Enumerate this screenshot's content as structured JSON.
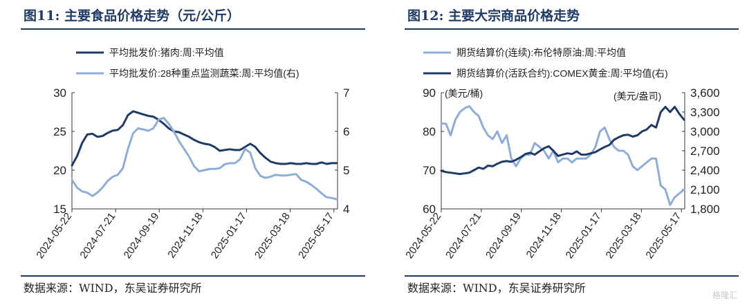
{
  "source": "数据来源：WIND，东吴证券研究所",
  "watermark": "格隆汇",
  "charts": [
    {
      "title": "图11:  主要食品价格走势（元/公斤）",
      "chart_data": {
        "type": "line",
        "x_ticks": [
          "2024-05-22",
          "2024-07-21",
          "2024-09-19",
          "2024-11-18",
          "2025-01-17",
          "2025-03-18",
          "2025-05-17"
        ],
        "x_range": [
          "2024-05-22",
          "2025-05-22"
        ],
        "y_left": {
          "min": 15,
          "max": 30,
          "ticks": [
            15,
            20,
            25,
            30
          ]
        },
        "y_right": {
          "min": 4,
          "max": 7,
          "ticks": [
            4,
            5,
            6,
            7
          ]
        },
        "series": [
          {
            "name": "平均批发价:猪肉:周:平均值",
            "axis": "left",
            "color": "#1f3a64",
            "x": [
              "2024-05-22",
              "2024-05-29",
              "2024-06-05",
              "2024-06-12",
              "2024-06-19",
              "2024-06-26",
              "2024-07-03",
              "2024-07-10",
              "2024-07-17",
              "2024-07-24",
              "2024-07-31",
              "2024-08-07",
              "2024-08-14",
              "2024-08-21",
              "2024-08-28",
              "2024-09-04",
              "2024-09-11",
              "2024-09-18",
              "2024-09-25",
              "2024-10-02",
              "2024-10-09",
              "2024-10-16",
              "2024-10-23",
              "2024-10-30",
              "2024-11-06",
              "2024-11-13",
              "2024-11-20",
              "2024-11-27",
              "2024-12-04",
              "2024-12-11",
              "2024-12-18",
              "2024-12-25",
              "2025-01-01",
              "2025-01-08",
              "2025-01-15",
              "2025-01-22",
              "2025-01-29",
              "2025-02-05",
              "2025-02-12",
              "2025-02-19",
              "2025-02-26",
              "2025-03-05",
              "2025-03-12",
              "2025-03-19",
              "2025-03-26",
              "2025-04-02",
              "2025-04-09",
              "2025-04-16",
              "2025-04-23",
              "2025-04-30",
              "2025-05-07",
              "2025-05-14",
              "2025-05-21"
            ],
            "values": [
              20.6,
              21.8,
              23.5,
              24.6,
              24.7,
              24.3,
              24.4,
              24.8,
              25.1,
              25.2,
              25.8,
              27.1,
              27.6,
              27.4,
              27.2,
              27.0,
              26.9,
              26.5,
              26.0,
              25.4,
              25.0,
              24.9,
              24.6,
              24.3,
              23.9,
              23.6,
              23.4,
              23.3,
              23.0,
              22.5,
              22.6,
              22.7,
              22.6,
              22.6,
              23.0,
              23.4,
              23.0,
              22.2,
              21.6,
              21.1,
              20.9,
              20.8,
              20.8,
              20.9,
              20.8,
              20.8,
              20.9,
              20.8,
              20.8,
              21.0,
              20.8,
              20.9,
              20.9
            ]
          },
          {
            "name": "平均批发价:28种重点监测蔬菜:周:平均值(右)",
            "axis": "right",
            "color": "#8eacd8",
            "x": [
              "2024-05-22",
              "2024-05-29",
              "2024-06-05",
              "2024-06-12",
              "2024-06-19",
              "2024-06-26",
              "2024-07-03",
              "2024-07-10",
              "2024-07-17",
              "2024-07-24",
              "2024-07-31",
              "2024-08-07",
              "2024-08-14",
              "2024-08-21",
              "2024-08-28",
              "2024-09-04",
              "2024-09-11",
              "2024-09-18",
              "2024-09-25",
              "2024-10-02",
              "2024-10-09",
              "2024-10-16",
              "2024-10-23",
              "2024-10-30",
              "2024-11-06",
              "2024-11-13",
              "2024-11-20",
              "2024-11-27",
              "2024-12-04",
              "2024-12-11",
              "2024-12-18",
              "2024-12-25",
              "2025-01-01",
              "2025-01-08",
              "2025-01-15",
              "2025-01-22",
              "2025-01-29",
              "2025-02-05",
              "2025-02-12",
              "2025-02-19",
              "2025-02-26",
              "2025-03-05",
              "2025-03-12",
              "2025-03-19",
              "2025-03-26",
              "2025-04-02",
              "2025-04-09",
              "2025-04-16",
              "2025-04-23",
              "2025-04-30",
              "2025-05-07",
              "2025-05-14",
              "2025-05-21"
            ],
            "values": [
              4.75,
              4.55,
              4.45,
              4.42,
              4.33,
              4.42,
              4.55,
              4.72,
              4.83,
              4.88,
              5.05,
              5.55,
              5.95,
              6.08,
              6.05,
              6.02,
              6.08,
              6.3,
              6.35,
              6.2,
              6.0,
              5.75,
              5.55,
              5.35,
              5.1,
              4.97,
              5.0,
              5.03,
              5.03,
              5.05,
              5.15,
              5.18,
              5.18,
              5.28,
              5.55,
              5.45,
              5.05,
              4.85,
              4.8,
              4.83,
              4.88,
              4.86,
              4.86,
              4.88,
              4.9,
              4.75,
              4.7,
              4.62,
              4.52,
              4.4,
              4.3,
              4.28,
              4.25
            ]
          }
        ]
      }
    },
    {
      "title": "图12:  主要大宗商品价格走势",
      "chart_data": {
        "type": "line",
        "x_ticks": [
          "2024-05-22",
          "2024-07-21",
          "2024-09-19",
          "2024-11-18",
          "2025-01-17",
          "2025-03-18",
          "2025-05-17"
        ],
        "x_range": [
          "2024-05-22",
          "2025-05-22"
        ],
        "y_left": {
          "min": 60,
          "max": 90,
          "ticks": [
            60,
            70,
            80,
            90
          ],
          "unit_label": "(美元/桶)"
        },
        "y_right": {
          "min": 1800,
          "max": 3600,
          "ticks": [
            1800,
            2100,
            2400,
            2700,
            3000,
            3300,
            3600
          ],
          "unit_label": "(美元/盎司)"
        },
        "series": [
          {
            "name": "期货结算价(连续):布伦特原油:周:平均值",
            "axis": "left",
            "color": "#8eacd8",
            "x": [
              "2024-05-22",
              "2024-05-29",
              "2024-06-05",
              "2024-06-12",
              "2024-06-19",
              "2024-06-26",
              "2024-07-03",
              "2024-07-10",
              "2024-07-17",
              "2024-07-24",
              "2024-07-31",
              "2024-08-07",
              "2024-08-14",
              "2024-08-21",
              "2024-08-28",
              "2024-09-04",
              "2024-09-11",
              "2024-09-18",
              "2024-09-25",
              "2024-10-02",
              "2024-10-09",
              "2024-10-16",
              "2024-10-23",
              "2024-10-30",
              "2024-11-06",
              "2024-11-13",
              "2024-11-20",
              "2024-11-27",
              "2024-12-04",
              "2024-12-11",
              "2024-12-18",
              "2024-12-25",
              "2025-01-01",
              "2025-01-08",
              "2025-01-15",
              "2025-01-22",
              "2025-01-29",
              "2025-02-05",
              "2025-02-12",
              "2025-02-19",
              "2025-02-26",
              "2025-03-05",
              "2025-03-12",
              "2025-03-19",
              "2025-03-26",
              "2025-04-02",
              "2025-04-09",
              "2025-04-16",
              "2025-04-23",
              "2025-04-30",
              "2025-05-07",
              "2025-05-14",
              "2025-05-21"
            ],
            "values": [
              82,
              82,
              79,
              83,
              85,
              86,
              86.5,
              85,
              84,
              81,
              79,
              78,
              80,
              77,
              79,
              73,
              71,
              73,
              74,
              74,
              77,
              76,
              75,
              73,
              75,
              72,
              73,
              73,
              72,
              73,
              73,
              73,
              74,
              76,
              80,
              81,
              78,
              76,
              75,
              75,
              74,
              71,
              70,
              71,
              72,
              73,
              73,
              66,
              65,
              61,
              63,
              64,
              65
            ]
          },
          {
            "name": "期货结算价(活跃合约):COMEX黄金:周:平均值(右)",
            "axis": "right",
            "color": "#1f3a64",
            "x": [
              "2024-05-22",
              "2024-05-29",
              "2024-06-05",
              "2024-06-12",
              "2024-06-19",
              "2024-06-26",
              "2024-07-03",
              "2024-07-10",
              "2024-07-17",
              "2024-07-24",
              "2024-07-31",
              "2024-08-07",
              "2024-08-14",
              "2024-08-21",
              "2024-08-28",
              "2024-09-04",
              "2024-09-11",
              "2024-09-18",
              "2024-09-25",
              "2024-10-02",
              "2024-10-09",
              "2024-10-16",
              "2024-10-23",
              "2024-10-30",
              "2024-11-06",
              "2024-11-13",
              "2024-11-20",
              "2024-11-27",
              "2024-12-04",
              "2024-12-11",
              "2024-12-18",
              "2024-12-25",
              "2025-01-01",
              "2025-01-08",
              "2025-01-15",
              "2025-01-22",
              "2025-01-29",
              "2025-02-05",
              "2025-02-12",
              "2025-02-19",
              "2025-02-26",
              "2025-03-05",
              "2025-03-12",
              "2025-03-19",
              "2025-03-26",
              "2025-04-02",
              "2025-04-09",
              "2025-04-16",
              "2025-04-23",
              "2025-04-30",
              "2025-05-07",
              "2025-05-14",
              "2025-05-21"
            ],
            "values": [
              2390,
              2370,
              2360,
              2350,
              2340,
              2350,
              2360,
              2400,
              2440,
              2420,
              2470,
              2460,
              2500,
              2530,
              2540,
              2530,
              2560,
              2600,
              2650,
              2670,
              2640,
              2690,
              2740,
              2770,
              2700,
              2620,
              2640,
              2660,
              2650,
              2690,
              2640,
              2640,
              2660,
              2680,
              2720,
              2760,
              2790,
              2870,
              2910,
              2940,
              2950,
              2920,
              2940,
              3000,
              3030,
              3100,
              3060,
              3300,
              3380,
              3300,
              3380,
              3270,
              3180
            ]
          }
        ]
      }
    }
  ]
}
